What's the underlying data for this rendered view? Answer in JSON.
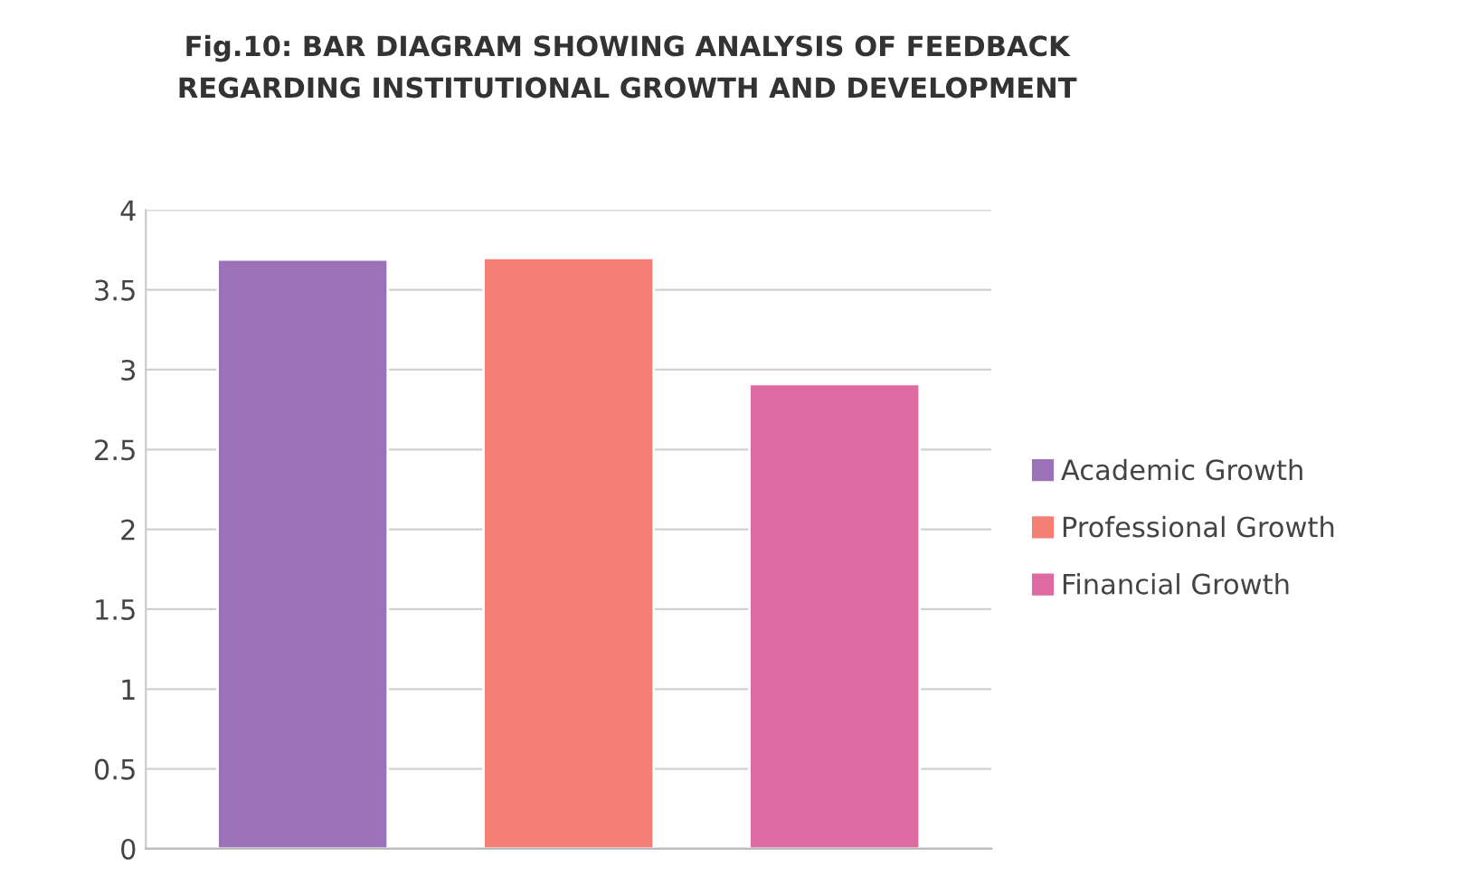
{
  "chart_data": {
    "type": "bar",
    "title": "Fig.10: BAR DIAGRAM SHOWING ANALYSIS OF FEEDBACK\nREGARDING INSTITUTIONAL GROWTH AND DEVELOPMENT",
    "categories": [
      null
    ],
    "series": [
      {
        "name": "Academic Growth",
        "color": "#9b72b8",
        "values": [
          3.69
        ]
      },
      {
        "name": "Professional Growth",
        "color": "#f47f74",
        "values": [
          3.7
        ]
      },
      {
        "name": "Financial Growth",
        "color": "#dd6aa0",
        "values": [
          2.91
        ]
      }
    ],
    "ylim": [
      0,
      4
    ],
    "yticks": [
      0,
      0.5,
      1,
      1.5,
      2,
      2.5,
      3,
      3.5,
      4
    ],
    "grid": "y",
    "legend": "right"
  }
}
